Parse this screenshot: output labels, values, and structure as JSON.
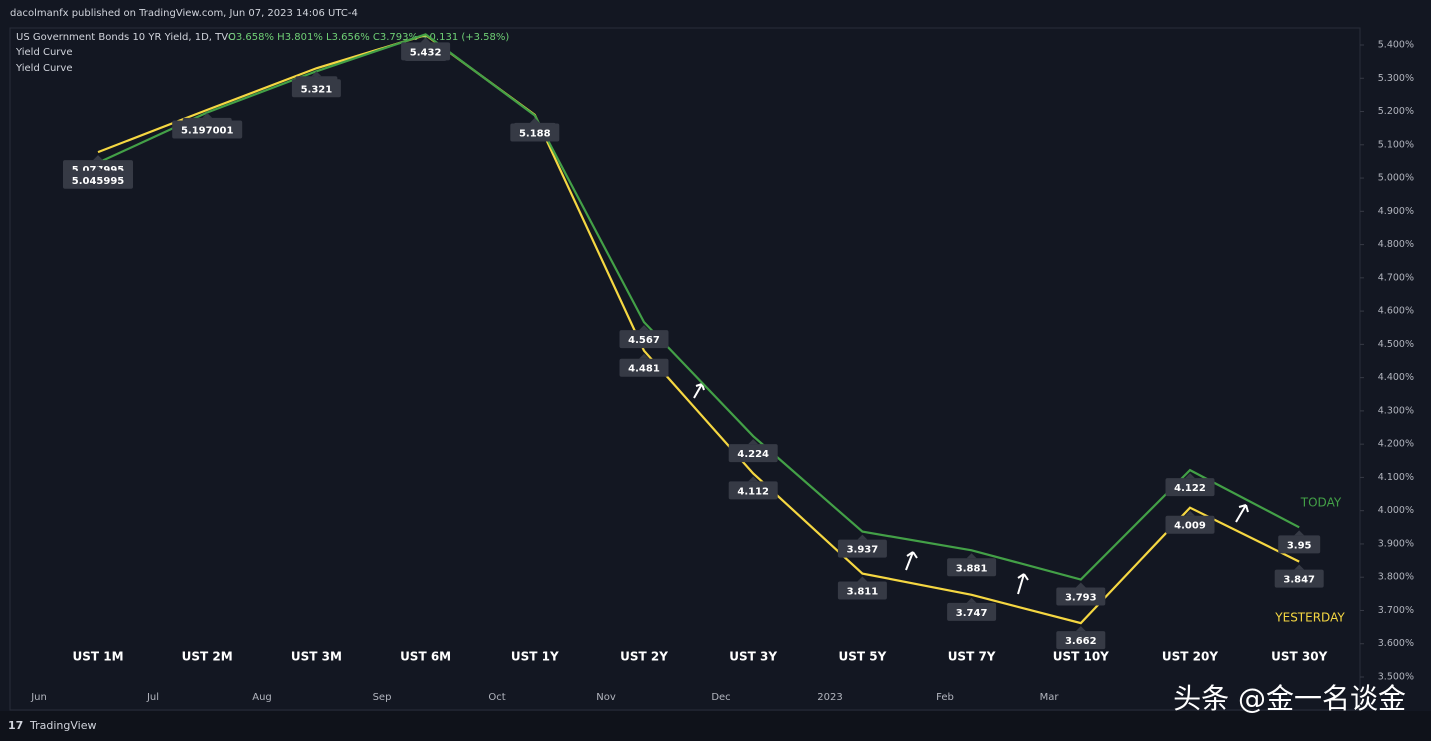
{
  "header": {
    "author": "dacolmanfx published on TradingView.com, Jun 07, 2023 14:06 UTC-4",
    "symbol": "US Government Bonds 10 YR Yield, 1D, TVC",
    "ohlc": "O3.658%  H3.801%  L3.656%  C3.793%  +0.131 (+3.58%)",
    "indicators": [
      "Yield Curve",
      "Yield Curve"
    ]
  },
  "time_axis": [
    "Jun",
    "Jul",
    "Aug",
    "Sep",
    "Oct",
    "Nov",
    "Dec",
    "2023",
    "Feb",
    "Mar"
  ],
  "footer": {
    "logo": "TradingView",
    "watermark": "头条 @金一名谈金"
  },
  "chart_data": {
    "type": "line",
    "categories": [
      "UST 1M",
      "UST 2M",
      "UST 3M",
      "UST 6M",
      "UST 1Y",
      "UST 2Y",
      "UST 3Y",
      "UST 5Y",
      "UST 7Y",
      "UST 10Y",
      "UST 20Y",
      "UST 30Y"
    ],
    "series": [
      {
        "name": "YESTERDAY",
        "color": "#f5d742",
        "values": [
          5.077995,
          5.205,
          5.33,
          5.43,
          5.19,
          4.481,
          4.112,
          3.811,
          3.747,
          3.662,
          4.009,
          3.847
        ]
      },
      {
        "name": "TODAY",
        "color": "#43a047",
        "values": [
          5.045995,
          5.197001,
          5.321,
          5.432,
          5.188,
          4.567,
          4.224,
          3.937,
          3.881,
          3.793,
          4.122,
          3.95
        ]
      }
    ],
    "ylim": [
      3.5,
      5.4
    ],
    "yticks": [
      {
        "value": 3.5,
        "label": "3.500%"
      },
      {
        "value": 3.6,
        "label": "3.600%"
      },
      {
        "value": 3.7,
        "label": "3.700%"
      },
      {
        "value": 3.8,
        "label": "3.800%"
      },
      {
        "value": 3.9,
        "label": "3.900%"
      },
      {
        "value": 4.0,
        "label": "4.000%"
      },
      {
        "value": 4.1,
        "label": "4.100%"
      },
      {
        "value": 4.2,
        "label": "4.200%"
      },
      {
        "value": 4.3,
        "label": "4.300%"
      },
      {
        "value": 4.4,
        "label": "4.400%"
      },
      {
        "value": 4.5,
        "label": "4.500%"
      },
      {
        "value": 4.6,
        "label": "4.600%"
      },
      {
        "value": 4.7,
        "label": "4.700%"
      },
      {
        "value": 4.8,
        "label": "4.800%"
      },
      {
        "value": 4.9,
        "label": "4.900%"
      },
      {
        "value": 5.0,
        "label": "5.000%"
      },
      {
        "value": 5.1,
        "label": "5.100%"
      },
      {
        "value": 5.2,
        "label": "5.200%"
      },
      {
        "value": 5.3,
        "label": "5.300%"
      },
      {
        "value": 5.4,
        "label": "5.400%"
      }
    ],
    "grid": false
  }
}
